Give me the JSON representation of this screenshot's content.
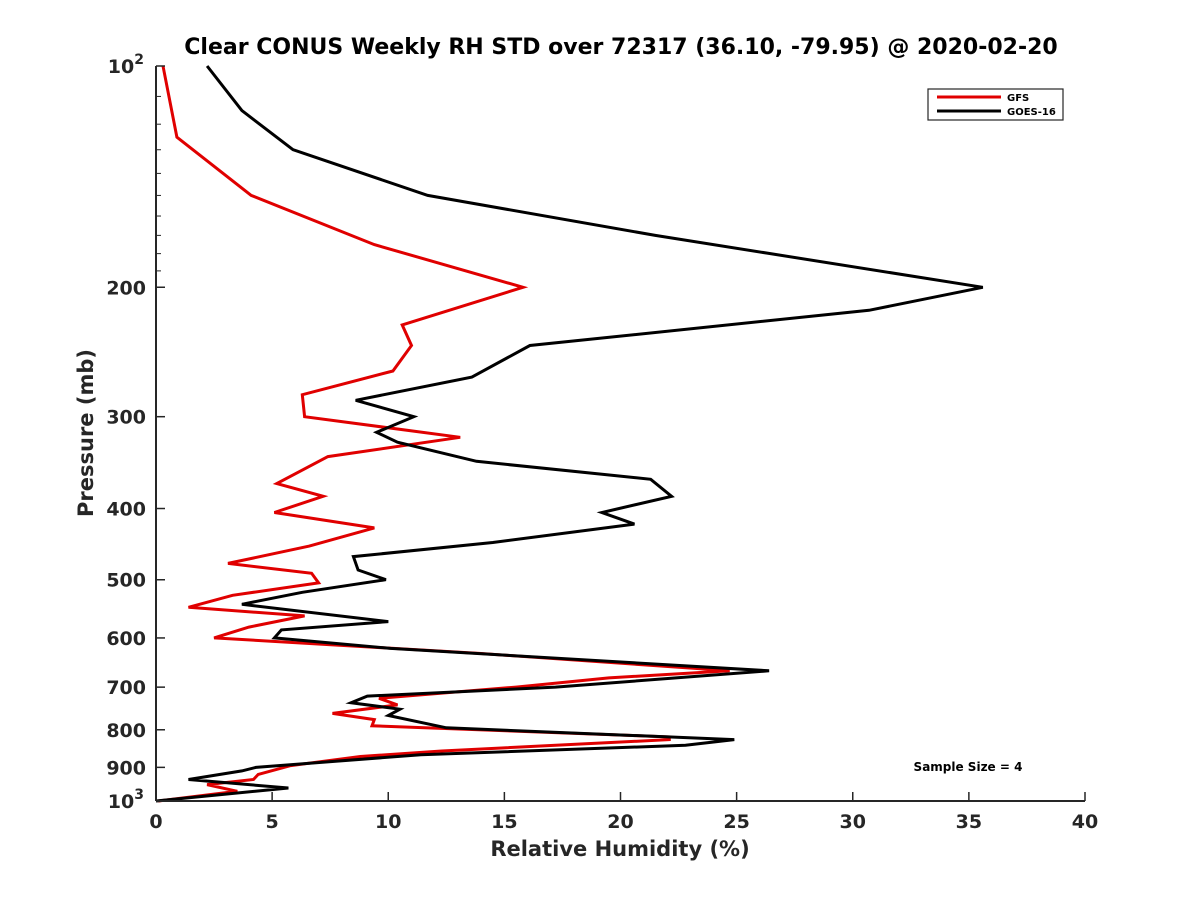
{
  "chart_data": {
    "type": "line",
    "title": "Clear CONUS Weekly RH STD over 72317 (36.10, -79.95) @ 2020-02-20",
    "xlabel": "Relative Humidity (%)",
    "ylabel": "Pressure (mb)",
    "xlim": [
      0,
      40
    ],
    "ylim": [
      100,
      1000
    ],
    "y_scale": "log",
    "y_reversed": true,
    "x_ticks": [
      "0",
      "5",
      "10",
      "15",
      "20",
      "25",
      "30",
      "35",
      "40"
    ],
    "y_ticks": [
      {
        "value": 100,
        "label": "10",
        "sup": "2"
      },
      {
        "value": 200,
        "label": "200",
        "sup": ""
      },
      {
        "value": 300,
        "label": "300",
        "sup": ""
      },
      {
        "value": 400,
        "label": "400",
        "sup": ""
      },
      {
        "value": 500,
        "label": "500",
        "sup": ""
      },
      {
        "value": 600,
        "label": "600",
        "sup": ""
      },
      {
        "value": 700,
        "label": "700",
        "sup": ""
      },
      {
        "value": 800,
        "label": "800",
        "sup": ""
      },
      {
        "value": 900,
        "label": "900",
        "sup": ""
      },
      {
        "value": 1000,
        "label": "10",
        "sup": "3"
      }
    ],
    "grid": false,
    "legend_position": "top-right",
    "annotation": "Sample Size = 4",
    "series": [
      {
        "name": "GFS",
        "color": "#e00000",
        "points": [
          [
            0.3,
            100
          ],
          [
            0.9,
            125
          ],
          [
            4.1,
            150
          ],
          [
            9.4,
            175
          ],
          [
            15.8,
            200
          ],
          [
            10.6,
            225
          ],
          [
            11.0,
            240
          ],
          [
            10.2,
            260
          ],
          [
            6.3,
            280
          ],
          [
            6.4,
            300
          ],
          [
            13.1,
            320
          ],
          [
            7.4,
            340
          ],
          [
            5.2,
            370
          ],
          [
            7.2,
            385
          ],
          [
            5.1,
            405
          ],
          [
            9.4,
            425
          ],
          [
            6.6,
            450
          ],
          [
            3.1,
            475
          ],
          [
            6.7,
            490
          ],
          [
            7.0,
            505
          ],
          [
            3.3,
            525
          ],
          [
            1.4,
            545
          ],
          [
            6.4,
            560
          ],
          [
            4.0,
            580
          ],
          [
            2.5,
            600
          ],
          [
            14.0,
            630
          ],
          [
            24.7,
            665
          ],
          [
            19.5,
            680
          ],
          [
            15.5,
            700
          ],
          [
            9.6,
            725
          ],
          [
            10.4,
            740
          ],
          [
            7.6,
            760
          ],
          [
            9.4,
            775
          ],
          [
            9.3,
            790
          ],
          [
            22.1,
            818
          ],
          [
            22.1,
            825
          ],
          [
            12.3,
            855
          ],
          [
            8.8,
            870
          ],
          [
            5.8,
            895
          ],
          [
            4.4,
            920
          ],
          [
            4.2,
            935
          ],
          [
            2.2,
            950
          ],
          [
            3.5,
            970
          ],
          [
            0.1,
            1000
          ]
        ]
      },
      {
        "name": "GOES-16",
        "color": "#000000",
        "points": [
          [
            2.2,
            100
          ],
          [
            3.7,
            115
          ],
          [
            5.9,
            130
          ],
          [
            11.7,
            150
          ],
          [
            21.5,
            170
          ],
          [
            35.6,
            200
          ],
          [
            30.7,
            215
          ],
          [
            16.1,
            240
          ],
          [
            13.6,
            265
          ],
          [
            8.6,
            285
          ],
          [
            11.1,
            300
          ],
          [
            9.5,
            315
          ],
          [
            10.4,
            325
          ],
          [
            13.8,
            345
          ],
          [
            21.3,
            365
          ],
          [
            22.2,
            385
          ],
          [
            19.2,
            405
          ],
          [
            20.6,
            420
          ],
          [
            14.5,
            445
          ],
          [
            8.5,
            465
          ],
          [
            8.7,
            485
          ],
          [
            9.9,
            500
          ],
          [
            6.3,
            520
          ],
          [
            3.7,
            540
          ],
          [
            10.0,
            570
          ],
          [
            5.4,
            585
          ],
          [
            5.1,
            600
          ],
          [
            10.1,
            620
          ],
          [
            26.4,
            665
          ],
          [
            17.2,
            700
          ],
          [
            9.1,
            720
          ],
          [
            8.4,
            735
          ],
          [
            10.5,
            750
          ],
          [
            10.0,
            765
          ],
          [
            12.5,
            795
          ],
          [
            24.9,
            825
          ],
          [
            22.8,
            840
          ],
          [
            11.4,
            865
          ],
          [
            4.3,
            900
          ],
          [
            3.7,
            910
          ],
          [
            1.4,
            935
          ],
          [
            5.7,
            960
          ],
          [
            0.0,
            1000
          ]
        ]
      }
    ]
  }
}
